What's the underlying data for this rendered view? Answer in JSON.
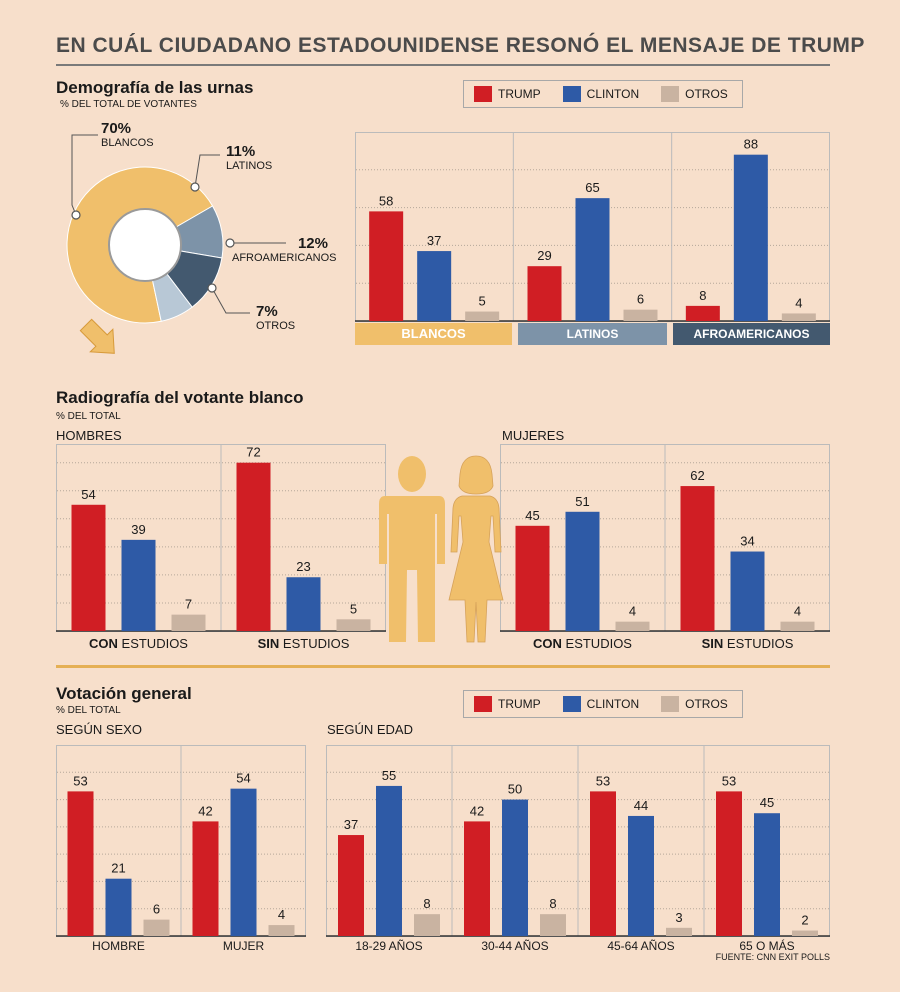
{
  "title": "EN CUÁL CIUDADANO ESTADOUNIDENSE RESONÓ EL MENSAJE DE TRUMP",
  "colors": {
    "trump": "#d01e24",
    "clinton": "#2e5aa6",
    "otros": "#c9b3a1",
    "blancos": "#f0bf6b",
    "latinos": "#7d93a8",
    "afroamericanos": "#43596f",
    "otros_slice": "#b8c8d6"
  },
  "legend": {
    "trump": "TRUMP",
    "clinton": "CLINTON",
    "otros": "OTROS"
  },
  "demografia": {
    "title": "Demografía de las urnas",
    "subtitle": "% DEL TOTAL DE VOTANTES",
    "pie": [
      {
        "pct": "70%",
        "label": "BLANCOS",
        "value": 70
      },
      {
        "pct": "11%",
        "label": "LATINOS",
        "value": 11
      },
      {
        "pct": "12%",
        "label": "AFROAMERICANOS",
        "value": 12
      },
      {
        "pct": "7%",
        "label": "OTROS",
        "value": 7
      }
    ],
    "group_labels": [
      "BLANCOS",
      "LATINOS",
      "AFROAMERICANOS"
    ]
  },
  "radiografia": {
    "title": "Radiografía del votante blanco",
    "subtitle": "% DEL TOTAL",
    "hombres_label": "HOMBRES",
    "mujeres_label": "MUJERES",
    "cats": [
      {
        "bold": "CON",
        "rest": " ESTUDIOS"
      },
      {
        "bold": "SIN",
        "rest": " ESTUDIOS"
      }
    ]
  },
  "votacion": {
    "title": "Votación general",
    "subtitle": "% DEL TOTAL",
    "sexo_label": "SEGÚN SEXO",
    "edad_label": "SEGÚN EDAD",
    "source": "FUENTE: CNN EXIT POLLS"
  },
  "chart_data": [
    {
      "type": "bar",
      "title": "Demografía de las urnas",
      "categories": [
        "BLANCOS",
        "LATINOS",
        "AFROAMERICANOS"
      ],
      "series": [
        {
          "name": "TRUMP",
          "values": [
            58,
            29,
            8
          ]
        },
        {
          "name": "CLINTON",
          "values": [
            37,
            65,
            88
          ]
        },
        {
          "name": "OTROS",
          "values": [
            5,
            6,
            4
          ]
        }
      ],
      "ylim": [
        0,
        100
      ]
    },
    {
      "type": "bar",
      "title": "HOMBRES",
      "categories": [
        "CON ESTUDIOS",
        "SIN ESTUDIOS"
      ],
      "series": [
        {
          "name": "TRUMP",
          "values": [
            54,
            72
          ]
        },
        {
          "name": "CLINTON",
          "values": [
            39,
            23
          ]
        },
        {
          "name": "OTROS",
          "values": [
            7,
            5
          ]
        }
      ],
      "ylim": [
        0,
        80
      ]
    },
    {
      "type": "bar",
      "title": "MUJERES",
      "categories": [
        "CON ESTUDIOS",
        "SIN ESTUDIOS"
      ],
      "series": [
        {
          "name": "TRUMP",
          "values": [
            45,
            62
          ]
        },
        {
          "name": "CLINTON",
          "values": [
            51,
            34
          ]
        },
        {
          "name": "OTROS",
          "values": [
            4,
            4
          ]
        }
      ],
      "ylim": [
        0,
        80
      ]
    },
    {
      "type": "bar",
      "title": "SEGÚN SEXO",
      "categories": [
        "HOMBRE",
        "MUJER"
      ],
      "series": [
        {
          "name": "TRUMP",
          "values": [
            53,
            42
          ]
        },
        {
          "name": "CLINTON",
          "values": [
            21,
            54
          ]
        },
        {
          "name": "OTROS",
          "values": [
            6,
            4
          ]
        }
      ],
      "ylim": [
        0,
        70
      ]
    },
    {
      "type": "bar",
      "title": "SEGÚN EDAD",
      "categories": [
        "18-29 AÑOS",
        "30-44 AÑOS",
        "45-64 AÑOS",
        "65 O MÁS"
      ],
      "series": [
        {
          "name": "TRUMP",
          "values": [
            37,
            42,
            53,
            53
          ]
        },
        {
          "name": "CLINTON",
          "values": [
            55,
            50,
            44,
            45
          ]
        },
        {
          "name": "OTROS",
          "values": [
            8,
            8,
            3,
            2
          ]
        }
      ],
      "ylim": [
        0,
        70
      ]
    }
  ]
}
